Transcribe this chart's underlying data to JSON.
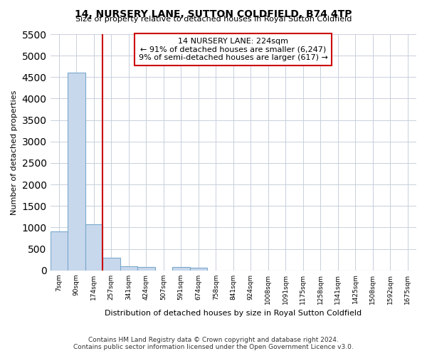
{
  "title": "14, NURSERY LANE, SUTTON COLDFIELD, B74 4TP",
  "subtitle": "Size of property relative to detached houses in Royal Sutton Coldfield",
  "xlabel": "Distribution of detached houses by size in Royal Sutton Coldfield",
  "ylabel": "Number of detached properties",
  "footnote1": "Contains HM Land Registry data © Crown copyright and database right 2024.",
  "footnote2": "Contains public sector information licensed under the Open Government Licence v3.0.",
  "bar_categories": [
    "7sqm",
    "90sqm",
    "174sqm",
    "257sqm",
    "341sqm",
    "424sqm",
    "507sqm",
    "591sqm",
    "674sqm",
    "758sqm",
    "841sqm",
    "924sqm",
    "1008sqm",
    "1091sqm",
    "1175sqm",
    "1258sqm",
    "1341sqm",
    "1425sqm",
    "1508sqm",
    "1592sqm",
    "1675sqm"
  ],
  "bar_values": [
    900,
    4600,
    1080,
    300,
    90,
    85,
    0,
    70,
    55,
    0,
    0,
    0,
    0,
    0,
    0,
    0,
    0,
    0,
    0,
    0,
    0
  ],
  "bar_color": "#c8d8ec",
  "bar_edge_color": "#7aa8cc",
  "ylim_max": 5500,
  "yticks": [
    0,
    500,
    1000,
    1500,
    2000,
    2500,
    3000,
    3500,
    4000,
    4500,
    5000,
    5500
  ],
  "annotation_text": "14 NURSERY LANE: 224sqm\n← 91% of detached houses are smaller (6,247)\n9% of semi-detached houses are larger (617) →",
  "annotation_box_color": "#ffffff",
  "annotation_border_color": "#cc0000",
  "red_line_color": "#cc0000",
  "red_line_bar_index": 2,
  "background_color": "#ffffff",
  "grid_color": "#c8d0dc"
}
